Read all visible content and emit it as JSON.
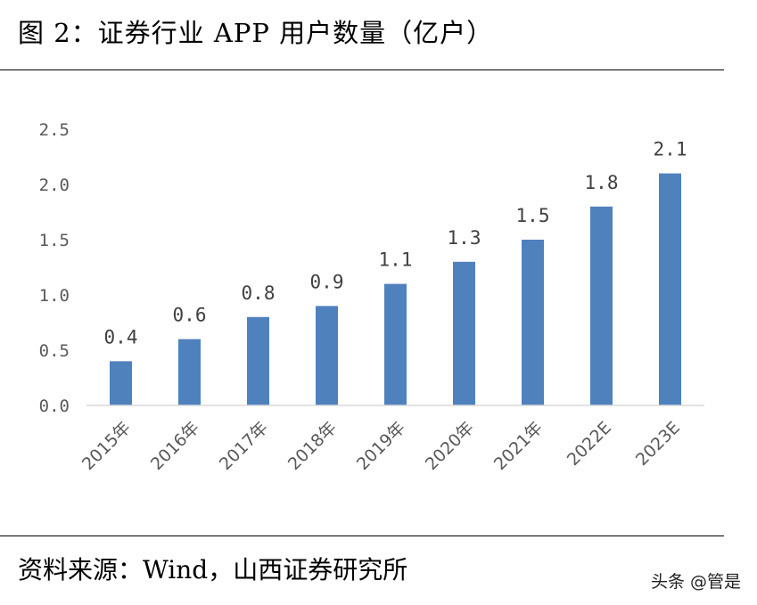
{
  "title": "图 2：证券行业 APP 用户数量（亿户）",
  "source": "资料来源：Wind，山西证券研究所",
  "watermark": "头条 @管是",
  "colors": {
    "bar": "#4F81BD",
    "axis": "#D9D9D9",
    "text": "#595959"
  },
  "chart_data": {
    "type": "bar",
    "title": "图 2：证券行业 APP 用户数量（亿户）",
    "xlabel": "",
    "ylabel": "",
    "categories": [
      "2015年",
      "2016年",
      "2017年",
      "2018年",
      "2019年",
      "2020年",
      "2021年",
      "2022E",
      "2023E"
    ],
    "values": [
      0.4,
      0.6,
      0.8,
      0.9,
      1.1,
      1.3,
      1.5,
      1.8,
      2.1
    ],
    "data_labels": [
      "0.4",
      "0.6",
      "0.8",
      "0.9",
      "1.1",
      "1.3",
      "1.5",
      "1.8",
      "2.1"
    ],
    "yticks": [
      "0.0",
      "0.5",
      "1.0",
      "1.5",
      "2.0",
      "2.5"
    ],
    "ylim": [
      0,
      2.5
    ],
    "grid": false,
    "legend": "none"
  }
}
